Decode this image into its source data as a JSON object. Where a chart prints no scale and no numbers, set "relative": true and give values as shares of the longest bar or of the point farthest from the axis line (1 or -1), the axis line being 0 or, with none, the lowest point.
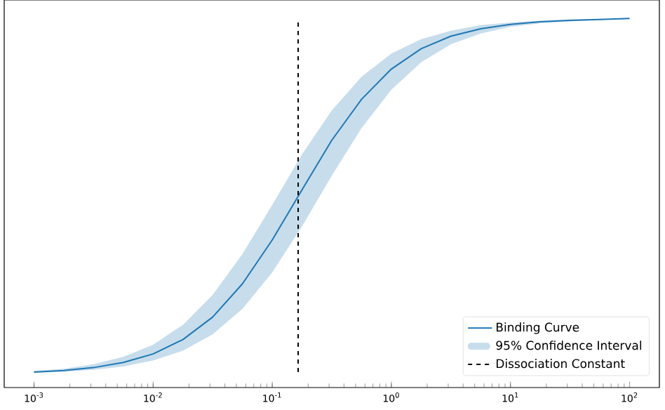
{
  "chart_data": {
    "type": "line",
    "relative": true,
    "log": "x",
    "xlim": [
      0.000562,
      177.8
    ],
    "xticks": [
      {
        "value": 0.001,
        "label": "10$^{-3}$"
      },
      {
        "value": 0.01,
        "label": "10$^{-2}$"
      },
      {
        "value": 0.1,
        "label": "10$^{-1}$"
      },
      {
        "value": 1,
        "label": "10$^{0}$"
      },
      {
        "value": 10,
        "label": "10$^{1}$"
      },
      {
        "value": 100,
        "label": "10$^{2}$"
      }
    ],
    "x": [
      0.001,
      0.00178,
      0.00316,
      0.00562,
      0.01,
      0.0178,
      0.0316,
      0.0562,
      0.1,
      0.178,
      0.316,
      0.562,
      1,
      1.78,
      3.16,
      5.62,
      10,
      17.8,
      31.6,
      56.2,
      100
    ],
    "series": [
      {
        "name": "Binding Curve",
        "color": "#1f77b4",
        "values": [
          0.042,
          0.046,
          0.054,
          0.068,
          0.091,
          0.13,
          0.191,
          0.281,
          0.4,
          0.536,
          0.67,
          0.781,
          0.863,
          0.918,
          0.952,
          0.972,
          0.984,
          0.991,
          0.995,
          0.997,
          1.0
        ],
        "lower": [
          0.04,
          0.043,
          0.048,
          0.057,
          0.073,
          0.1,
          0.144,
          0.213,
          0.312,
          0.437,
          0.574,
          0.703,
          0.807,
          0.881,
          0.93,
          0.959,
          0.977,
          0.987,
          0.992,
          0.996,
          0.998
        ],
        "upper": [
          0.045,
          0.051,
          0.063,
          0.083,
          0.116,
          0.17,
          0.251,
          0.362,
          0.495,
          0.632,
          0.751,
          0.842,
          0.905,
          0.944,
          0.967,
          0.982,
          0.989,
          0.994,
          0.997,
          0.998,
          1.0
        ]
      }
    ],
    "ref_lines": [
      {
        "axis": "x",
        "value": 0.165,
        "label": "Dissociation Constant",
        "color": "#000000",
        "line_style": "dashed"
      }
    ],
    "annotations": [
      "95% Confidence Interval"
    ],
    "legend": "bottom right",
    "grid": false,
    "marker": "none",
    "line_style": "solid"
  }
}
